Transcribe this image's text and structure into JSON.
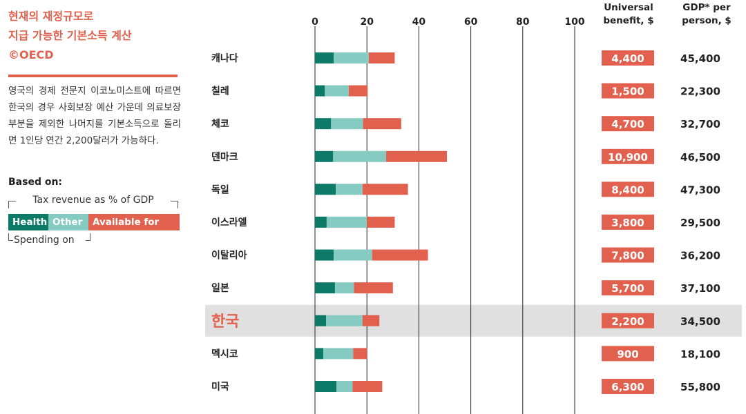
{
  "title_lines": [
    "현재의 재정규모로",
    "지급 가능한 기본소득 계산",
    "©OECD"
  ],
  "description": "영국의 경제 전문지 이코노미스트에 따르면 한국의 경우 사회보장 예산 가운데 의료보장부분을 제외한 나머지를 기본소득으로 돌리면 1인당 연간 2,200달러가 가능하다.",
  "legend": {
    "based_on": "Based on:",
    "top_label": "Tax revenue as % of GDP",
    "health": "Health",
    "other": "Other",
    "ubi": "Available for UBI",
    "bottom_label": "Spending on"
  },
  "headers": {
    "universal": "Universal benefit, $",
    "gdp": "GDP* per person, $"
  },
  "colors": {
    "health": "#0c7a66",
    "other": "#86cbc2",
    "ubi": "#e2614e",
    "highlight_row": "#e0e0e0"
  },
  "chart_data": {
    "type": "bar",
    "orientation": "horizontal",
    "stacked": true,
    "xlim": [
      0,
      100
    ],
    "xticks": [
      0,
      20,
      40,
      60,
      80,
      100
    ],
    "categories": [
      "캐나다",
      "칠레",
      "체코",
      "덴마크",
      "독일",
      "이스라엘",
      "이탈리아",
      "일본",
      "한국",
      "멕시코",
      "미국"
    ],
    "highlight": "한국",
    "series": [
      {
        "name": "Health",
        "values": [
          7.2,
          3.8,
          6.2,
          7.0,
          8.0,
          4.5,
          7.2,
          7.7,
          4.3,
          3.2,
          8.3
        ]
      },
      {
        "name": "Other",
        "values": [
          13.5,
          9.2,
          12.3,
          20.4,
          10.3,
          15.5,
          14.8,
          7.3,
          14.0,
          11.5,
          6.2
        ]
      },
      {
        "name": "Available for UBI",
        "values": [
          10.0,
          7.3,
          14.7,
          23.4,
          17.5,
          10.7,
          21.5,
          15.0,
          6.5,
          5.4,
          11.4
        ]
      }
    ],
    "universal_benefit": [
      "4,400",
      "1,500",
      "4,700",
      "10,900",
      "8,400",
      "3,800",
      "7,800",
      "5,700",
      "2,200",
      "900",
      "6,300"
    ],
    "gdp_per_person": [
      "45,400",
      "22,300",
      "32,700",
      "46,500",
      "47,300",
      "29,500",
      "36,200",
      "37,100",
      "34,500",
      "18,100",
      "55,800"
    ]
  }
}
